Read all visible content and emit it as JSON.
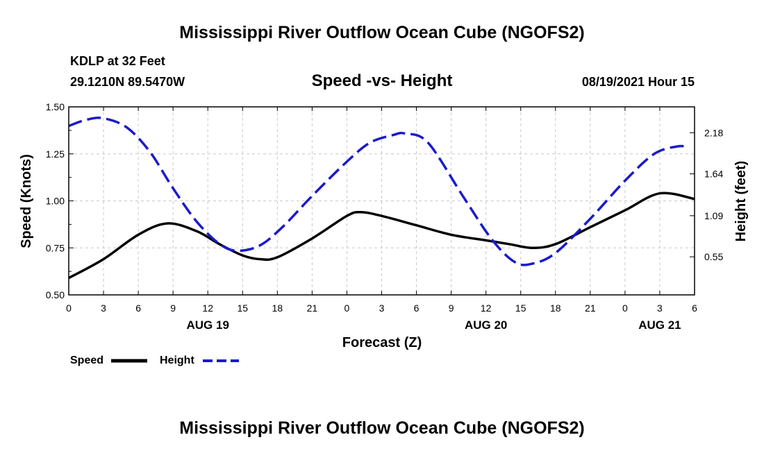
{
  "chart_data": {
    "type": "line",
    "title": "Mississippi River Outflow Ocean Cube (NGOFS2)",
    "footer_title": "Mississippi River Outflow Ocean Cube (NGOFS2)",
    "station": "KDLP at 32 Feet",
    "coordinates": "29.1210N  89.5470W",
    "subtitle": "Speed -vs- Height",
    "timestamp": "08/19/2021 Hour 15",
    "xlabel": "Forecast (Z)",
    "ylabel_left": "Speed (Knots)",
    "ylabel_right": "Height (feet)",
    "x_ticks": [
      "0",
      "3",
      "6",
      "9",
      "12",
      "15",
      "18",
      "21",
      "0",
      "3",
      "6",
      "9",
      "12",
      "15",
      "18",
      "21",
      "0",
      "3",
      "6"
    ],
    "date_labels": [
      {
        "label": "AUG 19",
        "x": 12
      },
      {
        "label": "AUG 20",
        "x": 36
      },
      {
        "label": "AUG 21",
        "x": 51
      }
    ],
    "xlim": [
      0,
      54
    ],
    "ylim_left": [
      0.5,
      1.5
    ],
    "yticks_left": [
      "0.50",
      "0.75",
      "1.00",
      "1.25",
      "1.50"
    ],
    "ylim_right": [
      0.05,
      2.52
    ],
    "yticks_right": [
      {
        "label": "0.55",
        "value": 0.55
      },
      {
        "label": "1.09",
        "value": 1.09
      },
      {
        "label": "1.64",
        "value": 1.64
      },
      {
        "label": "2.18",
        "value": 2.18
      }
    ],
    "series": [
      {
        "name": "Speed",
        "axis": "left",
        "color": "#000000",
        "x": [
          0,
          3,
          6,
          8.5,
          11,
          13,
          15,
          16.5,
          18,
          21,
          24,
          25.2,
          27,
          30,
          33,
          36,
          38,
          40,
          42,
          45,
          48,
          51,
          54
        ],
        "values": [
          0.59,
          0.69,
          0.82,
          0.88,
          0.84,
          0.77,
          0.71,
          0.69,
          0.7,
          0.8,
          0.92,
          0.94,
          0.92,
          0.87,
          0.82,
          0.79,
          0.77,
          0.75,
          0.77,
          0.86,
          0.95,
          1.04,
          1.01
        ]
      },
      {
        "name": "Height",
        "axis": "right",
        "color": "#1a1acd",
        "x": [
          0,
          1.5,
          3,
          5,
          7,
          9,
          11,
          13,
          14.5,
          16.5,
          18.5,
          21,
          24,
          26,
          28,
          29,
          31,
          34,
          36.5,
          38.5,
          40,
          42,
          45,
          48,
          50.5,
          52.5,
          53.5
        ],
        "values": [
          2.27,
          2.35,
          2.37,
          2.25,
          1.93,
          1.45,
          1.02,
          0.72,
          0.63,
          0.7,
          0.95,
          1.35,
          1.8,
          2.05,
          2.15,
          2.17,
          2.05,
          1.35,
          0.78,
          0.48,
          0.46,
          0.6,
          1.05,
          1.55,
          1.9,
          2.0,
          1.99
        ]
      }
    ]
  }
}
